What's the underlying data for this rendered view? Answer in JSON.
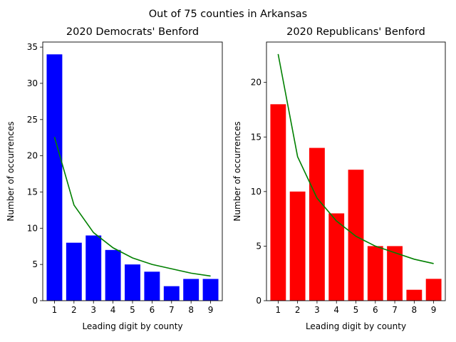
{
  "suptitle": "Out of 75 counties in Arkansas",
  "chart_data": [
    {
      "type": "bar",
      "title": "2020 Democrats' Benford",
      "xlabel": "Leading digit by county",
      "ylabel": "Number of occurrences",
      "categories": [
        "1",
        "2",
        "3",
        "4",
        "5",
        "6",
        "7",
        "8",
        "9"
      ],
      "bar_color": "#0000ff",
      "line_color": "#008000",
      "ylim": [
        0,
        35.7
      ],
      "yticks": [
        0,
        5,
        10,
        15,
        20,
        25,
        30,
        35
      ],
      "series": [
        {
          "type": "bar",
          "values": [
            34,
            8,
            9,
            7,
            5,
            4,
            2,
            3,
            3
          ]
        },
        {
          "type": "line",
          "values": [
            22.6,
            13.2,
            9.4,
            7.3,
            5.9,
            5.0,
            4.4,
            3.8,
            3.4
          ]
        }
      ]
    },
    {
      "type": "bar",
      "title": "2020 Republicans' Benford",
      "xlabel": "Leading digit by county",
      "ylabel": "Number of occurrences",
      "categories": [
        "1",
        "2",
        "3",
        "4",
        "5",
        "6",
        "7",
        "8",
        "9"
      ],
      "bar_color": "#ff0000",
      "line_color": "#008000",
      "ylim": [
        0,
        23.7
      ],
      "yticks": [
        0,
        5,
        10,
        15,
        20
      ],
      "series": [
        {
          "type": "bar",
          "values": [
            18,
            10,
            14,
            8,
            12,
            5,
            5,
            1,
            2
          ]
        },
        {
          "type": "line",
          "values": [
            22.6,
            13.2,
            9.4,
            7.3,
            5.9,
            5.0,
            4.4,
            3.8,
            3.4
          ]
        }
      ]
    }
  ]
}
